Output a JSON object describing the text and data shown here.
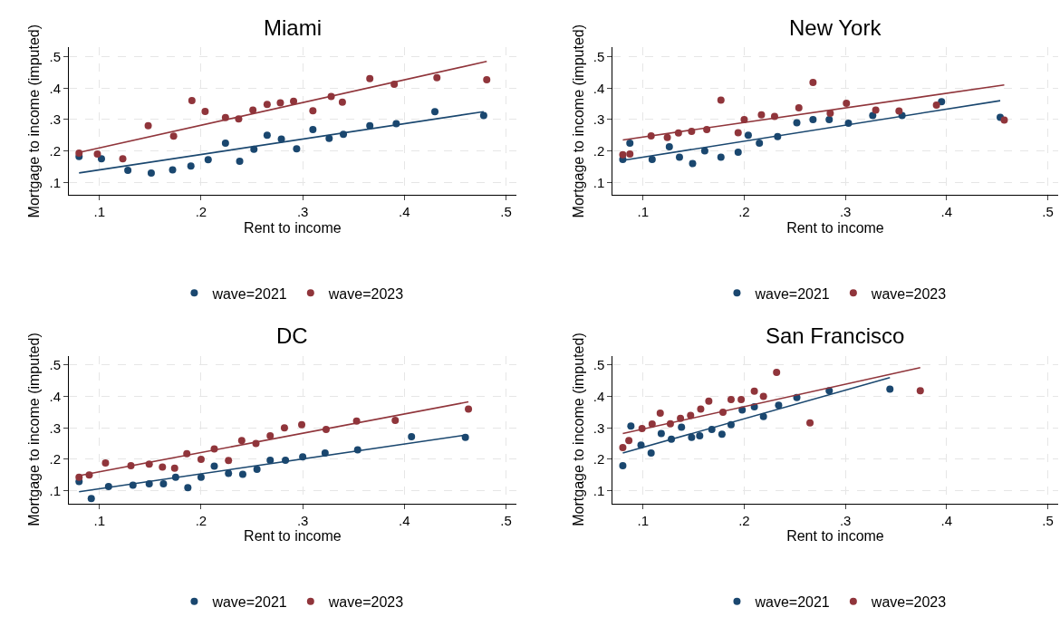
{
  "chart_data": [
    {
      "type": "scatter",
      "title": "Miami",
      "xlabel": "Rent to income",
      "ylabel": "Mortgage to income (imputed)",
      "xlim": [
        0.07,
        0.51
      ],
      "ylim": [
        0.06,
        0.53
      ],
      "xticks": [
        {
          "value": 0.1,
          "label": ".1"
        },
        {
          "value": 0.2,
          "label": ".2"
        },
        {
          "value": 0.3,
          "label": ".3"
        },
        {
          "value": 0.4,
          "label": ".4"
        },
        {
          "value": 0.5,
          "label": ".5"
        }
      ],
      "yticks": [
        {
          "value": 0.1,
          "label": ".1"
        },
        {
          "value": 0.2,
          "label": ".2"
        },
        {
          "value": 0.3,
          "label": ".3"
        },
        {
          "value": 0.4,
          "label": ".4"
        },
        {
          "value": 0.5,
          "label": ".5"
        }
      ],
      "grid": true,
      "legend": "bottom",
      "marker": "circle",
      "series": [
        {
          "name": "wave=2021",
          "color": "#1a476f",
          "x": [
            0.08,
            0.102,
            0.128,
            0.151,
            0.172,
            0.19,
            0.207,
            0.224,
            0.238,
            0.252,
            0.265,
            0.279,
            0.294,
            0.31,
            0.326,
            0.34,
            0.366,
            0.392,
            0.43,
            0.478
          ],
          "values": [
            0.182,
            0.175,
            0.138,
            0.13,
            0.14,
            0.152,
            0.172,
            0.225,
            0.167,
            0.205,
            0.25,
            0.238,
            0.207,
            0.268,
            0.24,
            0.253,
            0.28,
            0.287,
            0.325,
            0.313
          ]
        },
        {
          "name": "wave=2023",
          "color": "#90353b",
          "x": [
            0.08,
            0.098,
            0.123,
            0.148,
            0.173,
            0.191,
            0.204,
            0.224,
            0.237,
            0.251,
            0.265,
            0.278,
            0.291,
            0.31,
            0.328,
            0.339,
            0.366,
            0.39,
            0.432,
            0.481
          ],
          "values": [
            0.193,
            0.19,
            0.175,
            0.28,
            0.247,
            0.36,
            0.326,
            0.306,
            0.302,
            0.33,
            0.348,
            0.353,
            0.358,
            0.328,
            0.373,
            0.355,
            0.43,
            0.412,
            0.433,
            0.427
          ]
        },
        {
          "type": "line",
          "marker": "none",
          "color": "#1a476f",
          "x": [
            0.08,
            0.478
          ],
          "values": [
            0.13,
            0.325
          ]
        },
        {
          "type": "line",
          "marker": "none",
          "color": "#90353b",
          "x": [
            0.08,
            0.481
          ],
          "values": [
            0.195,
            0.485
          ]
        }
      ]
    },
    {
      "type": "scatter",
      "title": "New York",
      "xlabel": "Rent to income",
      "ylabel": "Mortgage to income (imputed)",
      "xlim": [
        0.07,
        0.51
      ],
      "ylim": [
        0.06,
        0.53
      ],
      "xticks": [
        {
          "value": 0.1,
          "label": ".1"
        },
        {
          "value": 0.2,
          "label": ".2"
        },
        {
          "value": 0.3,
          "label": ".3"
        },
        {
          "value": 0.4,
          "label": ".4"
        },
        {
          "value": 0.5,
          "label": ".5"
        }
      ],
      "yticks": [
        {
          "value": 0.1,
          "label": ".1"
        },
        {
          "value": 0.2,
          "label": ".2"
        },
        {
          "value": 0.3,
          "label": ".3"
        },
        {
          "value": 0.4,
          "label": ".4"
        },
        {
          "value": 0.5,
          "label": ".5"
        }
      ],
      "grid": true,
      "legend": "bottom",
      "marker": "circle",
      "series": [
        {
          "name": "wave=2021",
          "color": "#1a476f",
          "x": [
            0.08,
            0.087,
            0.109,
            0.126,
            0.136,
            0.149,
            0.161,
            0.177,
            0.194,
            0.204,
            0.215,
            0.233,
            0.252,
            0.268,
            0.284,
            0.303,
            0.327,
            0.356,
            0.395,
            0.453
          ],
          "values": [
            0.173,
            0.225,
            0.173,
            0.213,
            0.18,
            0.16,
            0.2,
            0.18,
            0.196,
            0.25,
            0.225,
            0.246,
            0.29,
            0.3,
            0.3,
            0.288,
            0.313,
            0.313,
            0.357,
            0.307
          ]
        },
        {
          "name": "wave=2023",
          "color": "#90353b",
          "x": [
            0.08,
            0.087,
            0.108,
            0.124,
            0.135,
            0.148,
            0.163,
            0.177,
            0.194,
            0.2,
            0.217,
            0.23,
            0.254,
            0.268,
            0.285,
            0.301,
            0.33,
            0.353,
            0.39,
            0.457
          ],
          "values": [
            0.188,
            0.19,
            0.248,
            0.243,
            0.257,
            0.262,
            0.268,
            0.362,
            0.258,
            0.3,
            0.315,
            0.31,
            0.337,
            0.418,
            0.32,
            0.352,
            0.33,
            0.327,
            0.346,
            0.298
          ]
        },
        {
          "type": "line",
          "marker": "none",
          "color": "#1a476f",
          "x": [
            0.08,
            0.453
          ],
          "values": [
            0.17,
            0.36
          ]
        },
        {
          "type": "line",
          "marker": "none",
          "color": "#90353b",
          "x": [
            0.08,
            0.457
          ],
          "values": [
            0.235,
            0.41
          ]
        }
      ]
    },
    {
      "type": "scatter",
      "title": "DC",
      "xlabel": "Rent to income",
      "ylabel": "Mortgage to income (imputed)",
      "xlim": [
        0.07,
        0.51
      ],
      "ylim": [
        0.06,
        0.53
      ],
      "xticks": [
        {
          "value": 0.1,
          "label": ".1"
        },
        {
          "value": 0.2,
          "label": ".2"
        },
        {
          "value": 0.3,
          "label": ".3"
        },
        {
          "value": 0.4,
          "label": ".4"
        },
        {
          "value": 0.5,
          "label": ".5"
        }
      ],
      "yticks": [
        {
          "value": 0.1,
          "label": ".1"
        },
        {
          "value": 0.2,
          "label": ".2"
        },
        {
          "value": 0.3,
          "label": ".3"
        },
        {
          "value": 0.4,
          "label": ".4"
        },
        {
          "value": 0.5,
          "label": ".5"
        }
      ],
      "grid": true,
      "legend": "bottom",
      "marker": "circle",
      "series": [
        {
          "name": "wave=2021",
          "color": "#1a476f",
          "x": [
            0.08,
            0.092,
            0.109,
            0.133,
            0.149,
            0.163,
            0.175,
            0.187,
            0.2,
            0.213,
            0.227,
            0.241,
            0.255,
            0.268,
            0.283,
            0.3,
            0.322,
            0.354,
            0.407,
            0.46
          ],
          "values": [
            0.129,
            0.075,
            0.113,
            0.118,
            0.122,
            0.122,
            0.143,
            0.11,
            0.143,
            0.178,
            0.155,
            0.152,
            0.168,
            0.197,
            0.197,
            0.208,
            0.22,
            0.23,
            0.272,
            0.27
          ]
        },
        {
          "name": "wave=2023",
          "color": "#90353b",
          "x": [
            0.08,
            0.09,
            0.106,
            0.131,
            0.149,
            0.162,
            0.174,
            0.186,
            0.2,
            0.213,
            0.227,
            0.24,
            0.254,
            0.268,
            0.282,
            0.299,
            0.323,
            0.353,
            0.391,
            0.463
          ],
          "values": [
            0.143,
            0.15,
            0.188,
            0.18,
            0.185,
            0.175,
            0.172,
            0.218,
            0.2,
            0.233,
            0.196,
            0.26,
            0.25,
            0.275,
            0.3,
            0.31,
            0.295,
            0.322,
            0.324,
            0.36
          ]
        },
        {
          "type": "line",
          "marker": "none",
          "color": "#1a476f",
          "x": [
            0.08,
            0.46
          ],
          "values": [
            0.097,
            0.277
          ]
        },
        {
          "type": "line",
          "marker": "none",
          "color": "#90353b",
          "x": [
            0.08,
            0.463
          ],
          "values": [
            0.148,
            0.383
          ]
        }
      ]
    },
    {
      "type": "scatter",
      "title": "San Francisco",
      "xlabel": "Rent to income",
      "ylabel": "Mortgage to income (imputed)",
      "xlim": [
        0.07,
        0.51
      ],
      "ylim": [
        0.06,
        0.53
      ],
      "xticks": [
        {
          "value": 0.1,
          "label": ".1"
        },
        {
          "value": 0.2,
          "label": ".2"
        },
        {
          "value": 0.3,
          "label": ".3"
        },
        {
          "value": 0.4,
          "label": ".4"
        },
        {
          "value": 0.5,
          "label": ".5"
        }
      ],
      "yticks": [
        {
          "value": 0.1,
          "label": ".1"
        },
        {
          "value": 0.2,
          "label": ".2"
        },
        {
          "value": 0.3,
          "label": ".3"
        },
        {
          "value": 0.4,
          "label": ".4"
        },
        {
          "value": 0.5,
          "label": ".5"
        }
      ],
      "grid": true,
      "legend": "bottom",
      "marker": "circle",
      "series": [
        {
          "name": "wave=2021",
          "color": "#1a476f",
          "x": [
            0.08,
            0.088,
            0.098,
            0.108,
            0.118,
            0.128,
            0.138,
            0.148,
            0.156,
            0.168,
            0.178,
            0.187,
            0.198,
            0.21,
            0.219,
            0.234,
            0.252,
            0.284,
            0.344
          ],
          "values": [
            0.18,
            0.306,
            0.245,
            0.22,
            0.282,
            0.264,
            0.302,
            0.27,
            0.275,
            0.295,
            0.28,
            0.31,
            0.357,
            0.367,
            0.336,
            0.372,
            0.397,
            0.418,
            0.423
          ]
        },
        {
          "name": "wave=2023",
          "color": "#90353b",
          "x": [
            0.08,
            0.086,
            0.099,
            0.109,
            0.117,
            0.127,
            0.137,
            0.147,
            0.157,
            0.165,
            0.179,
            0.187,
            0.197,
            0.21,
            0.219,
            0.232,
            0.265,
            0.374
          ],
          "values": [
            0.237,
            0.26,
            0.298,
            0.312,
            0.347,
            0.313,
            0.33,
            0.34,
            0.36,
            0.385,
            0.35,
            0.39,
            0.39,
            0.417,
            0.4,
            0.477,
            0.316,
            0.418
          ]
        },
        {
          "type": "line",
          "marker": "none",
          "color": "#1a476f",
          "x": [
            0.08,
            0.344
          ],
          "values": [
            0.22,
            0.46
          ]
        },
        {
          "type": "line",
          "marker": "none",
          "color": "#90353b",
          "x": [
            0.08,
            0.374
          ],
          "values": [
            0.282,
            0.492
          ]
        }
      ]
    }
  ]
}
